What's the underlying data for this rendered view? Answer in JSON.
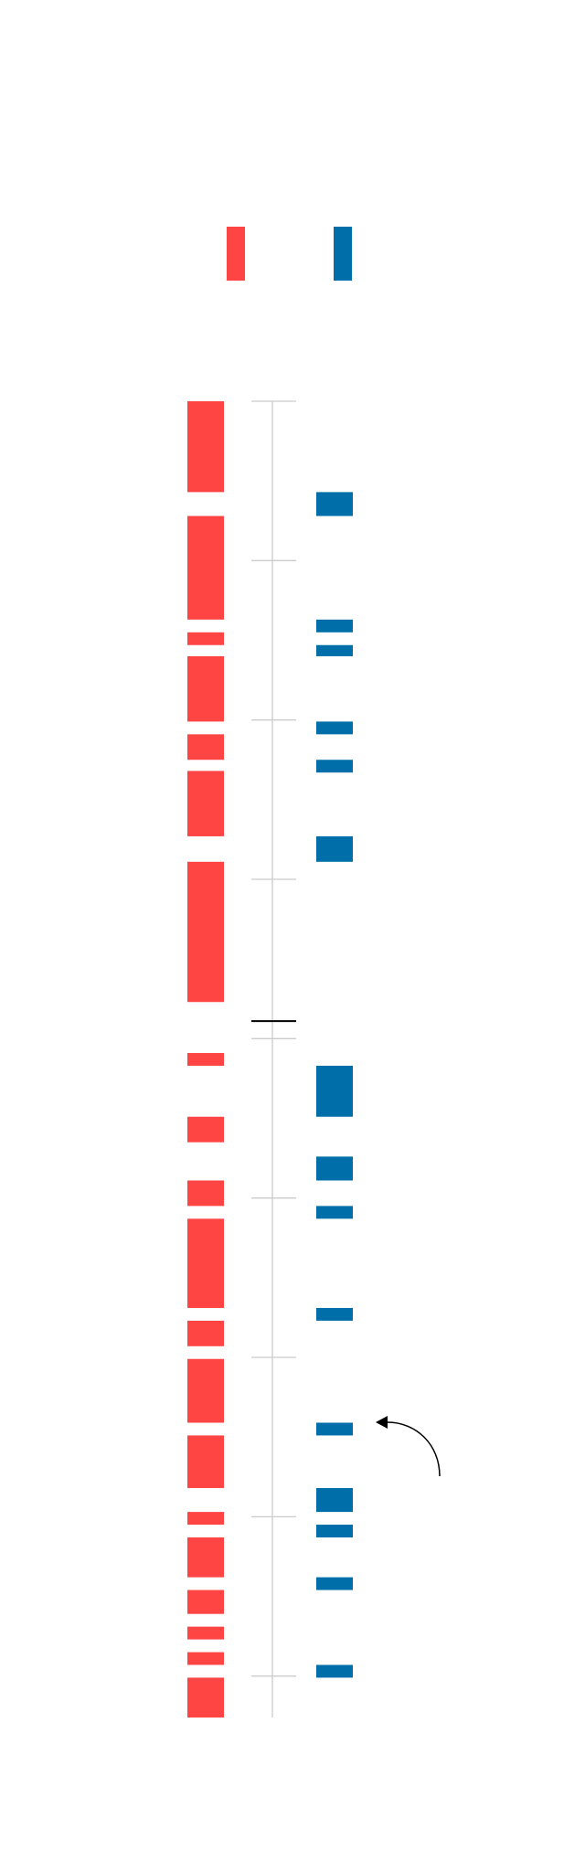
{
  "chart_data": {
    "type": "interval",
    "ylim": [
      0,
      8.26
    ],
    "yticks": [
      0,
      1,
      2,
      3,
      4,
      5,
      6,
      7,
      8
    ],
    "grid": false,
    "marker": 3.89,
    "series": [
      {
        "color": "#ff4444",
        "values": [
          [
            0,
            0.57
          ],
          [
            0.72,
            1.37
          ],
          [
            1.45,
            1.53
          ],
          [
            1.6,
            2.01
          ],
          [
            2.09,
            2.25
          ],
          [
            2.32,
            2.73
          ],
          [
            2.89,
            3.77
          ],
          [
            4.09,
            4.17
          ],
          [
            4.49,
            4.65
          ],
          [
            4.89,
            5.05
          ],
          [
            5.13,
            5.69
          ],
          [
            5.77,
            5.93
          ],
          [
            6.01,
            6.41
          ],
          [
            6.49,
            6.82
          ],
          [
            6.97,
            7.05
          ],
          [
            7.13,
            7.38
          ],
          [
            7.46,
            7.61
          ],
          [
            7.69,
            7.77
          ],
          [
            7.85,
            7.93
          ],
          [
            8.01,
            8.26
          ]
        ]
      },
      {
        "color": "#006ea8",
        "values": [
          [
            0.57,
            0.72
          ],
          [
            1.37,
            1.45
          ],
          [
            1.53,
            1.6
          ],
          [
            2.01,
            2.09
          ],
          [
            2.25,
            2.33
          ],
          [
            2.73,
            2.89
          ],
          [
            4.17,
            4.49
          ],
          [
            4.74,
            4.89
          ],
          [
            5.05,
            5.13
          ],
          [
            5.69,
            5.77
          ],
          [
            6.41,
            6.49
          ],
          [
            6.82,
            6.97
          ],
          [
            7.05,
            7.13
          ],
          [
            7.38,
            7.46
          ],
          [
            7.93,
            8.01
          ]
        ]
      }
    ]
  }
}
